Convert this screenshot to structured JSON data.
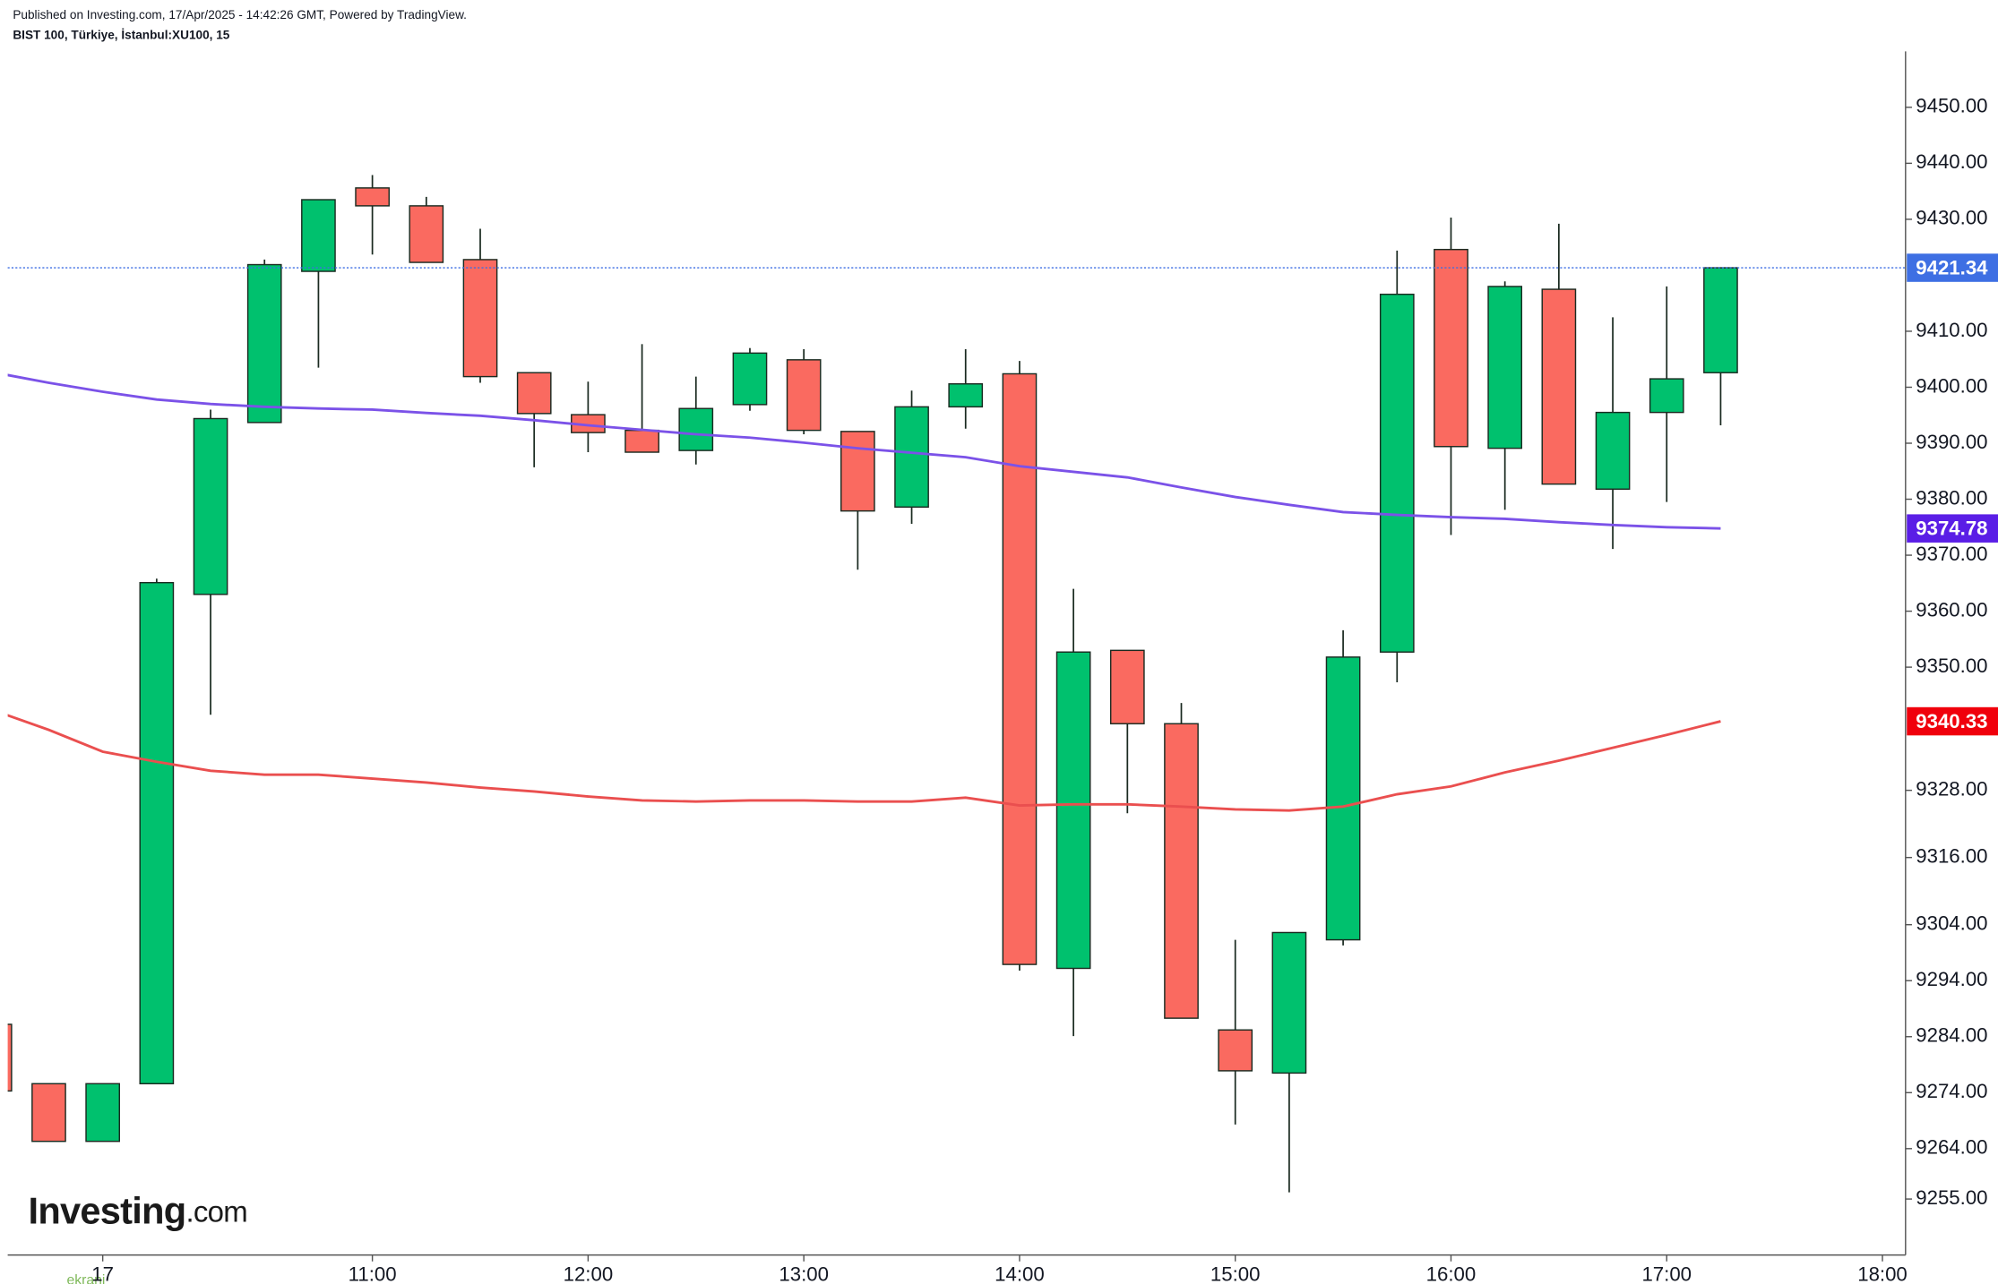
{
  "chart_data": {
    "type": "candlestick",
    "subtitle": "Published on Investing.com, 17/Apr/2025 - 14:42:26 GMT, Powered by TradingView.",
    "title": "BIST 100, Türkiye, İstanbul:XU100, 15",
    "logo_name": "Investing",
    "logo_suffix": ".com",
    "watermark": "ekrani",
    "categories": [
      null,
      null,
      "17",
      null,
      null,
      null,
      null,
      "11:00",
      null,
      null,
      null,
      "12:00",
      null,
      null,
      null,
      "13:00",
      null,
      null,
      null,
      "14:00",
      null,
      null,
      null,
      "15:00",
      null,
      null,
      null,
      "16:00",
      null,
      null,
      null,
      "17:00",
      null,
      null,
      null,
      "18:00"
    ],
    "open": [
      9286.2,
      9275.6,
      9265.3,
      9275.6,
      9363.0,
      9393.7,
      9420.7,
      9435.6,
      9432.4,
      9422.8,
      9402.6,
      9395.1,
      9392.3,
      9388.7,
      9396.9,
      9404.9,
      9392.1,
      9378.6,
      9396.5,
      9402.4,
      9296.2,
      9353.0,
      9339.9,
      9285.2,
      9277.5,
      9301.3,
      9352.7,
      9424.6,
      9389.1,
      9417.5,
      9381.8,
      9395.5,
      9402.6,
      null,
      null,
      null
    ],
    "high": [
      9286.2,
      9275.6,
      9275.6,
      9365.8,
      9396.0,
      9422.8,
      9433.5,
      9437.9,
      9434.0,
      9428.3,
      9402.6,
      9401.0,
      9407.7,
      9401.9,
      9407.0,
      9406.8,
      9392.1,
      9399.4,
      9406.8,
      9404.7,
      9364.0,
      9353.0,
      9343.6,
      9301.3,
      9302.6,
      9356.6,
      9424.4,
      9430.3,
      9418.9,
      9429.2,
      9412.5,
      9418.0,
      9421.34,
      null,
      null,
      null
    ],
    "low": [
      9274.3,
      9265.3,
      9265.3,
      9275.6,
      9341.5,
      9393.7,
      9403.5,
      9423.7,
      9422.3,
      9400.8,
      9385.7,
      9388.4,
      9388.4,
      9386.2,
      9395.8,
      9391.6,
      9367.4,
      9375.6,
      9392.6,
      9295.8,
      9284.1,
      9323.9,
      9287.3,
      9268.3,
      9256.2,
      9300.3,
      9347.3,
      9373.6,
      9378.1,
      9382.7,
      9371.1,
      9379.5,
      9393.2,
      null,
      null,
      null
    ],
    "close": [
      9274.3,
      9265.3,
      9275.6,
      9365.1,
      9394.4,
      9421.9,
      9433.5,
      9432.4,
      9422.3,
      9401.9,
      9395.3,
      9391.9,
      9388.4,
      9396.2,
      9406.1,
      9392.3,
      9377.9,
      9396.5,
      9400.6,
      9296.9,
      9352.7,
      9339.9,
      9287.3,
      9277.9,
      9302.6,
      9351.8,
      9416.6,
      9389.4,
      9418.0,
      9382.7,
      9395.5,
      9401.5,
      9421.34,
      null,
      null,
      null
    ],
    "up_color": "#00c16e",
    "down_color": "#fa6a60",
    "last_price_color": "#3e6fe3",
    "series": [
      {
        "color": "#7b52e8",
        "label_color": "#5a1ee6",
        "values": [
          9402.6,
          9400.8,
          9399.2,
          9397.8,
          9397.0,
          9396.5,
          9396.2,
          9396.0,
          9395.4,
          9394.9,
          9394.1,
          9393.2,
          9392.4,
          9391.6,
          9391.0,
          9390.1,
          9389.1,
          9388.3,
          9387.5,
          9385.9,
          9384.9,
          9383.9,
          9382.1,
          9380.4,
          9379.0,
          9377.7,
          9377.2,
          9376.8,
          9376.5,
          9375.9,
          9375.4,
          9375.0,
          9374.78,
          null,
          null,
          null
        ]
      },
      {
        "color": "#ea4f4f",
        "label_color": "#f0000c",
        "values": [
          9342.2,
          9338.8,
          9334.9,
          9333.1,
          9331.5,
          9330.8,
          9330.8,
          9330.1,
          9329.4,
          9328.5,
          9327.8,
          9326.9,
          9326.2,
          9326.0,
          9326.2,
          9326.2,
          9326.0,
          9326.0,
          9326.7,
          9325.3,
          9325.5,
          9325.5,
          9325.1,
          9324.6,
          9324.4,
          9325.1,
          9327.3,
          9328.7,
          9331.2,
          9333.3,
          9335.6,
          9337.9,
          9340.33,
          null,
          null,
          null
        ]
      }
    ],
    "ylim": [
      9245,
      9460
    ],
    "yticks": [
      {
        "value": 9255,
        "label": "9255.00"
      },
      {
        "value": 9264,
        "label": "9264.00"
      },
      {
        "value": 9274,
        "label": "9274.00"
      },
      {
        "value": 9284,
        "label": "9284.00"
      },
      {
        "value": 9294,
        "label": "9294.00"
      },
      {
        "value": 9304,
        "label": "9304.00"
      },
      {
        "value": 9316,
        "label": "9316.00"
      },
      {
        "value": 9328,
        "label": "9328.00"
      },
      {
        "value": 9350,
        "label": "9350.00"
      },
      {
        "value": 9360,
        "label": "9360.00"
      },
      {
        "value": 9370,
        "label": "9370.00"
      },
      {
        "value": 9380,
        "label": "9380.00"
      },
      {
        "value": 9390,
        "label": "9390.00"
      },
      {
        "value": 9400,
        "label": "9400.00"
      },
      {
        "value": 9410,
        "label": "9410.00"
      },
      {
        "value": 9430,
        "label": "9430.00"
      },
      {
        "value": 9440,
        "label": "9440.00"
      },
      {
        "value": 9450,
        "label": "9450.00"
      }
    ]
  }
}
